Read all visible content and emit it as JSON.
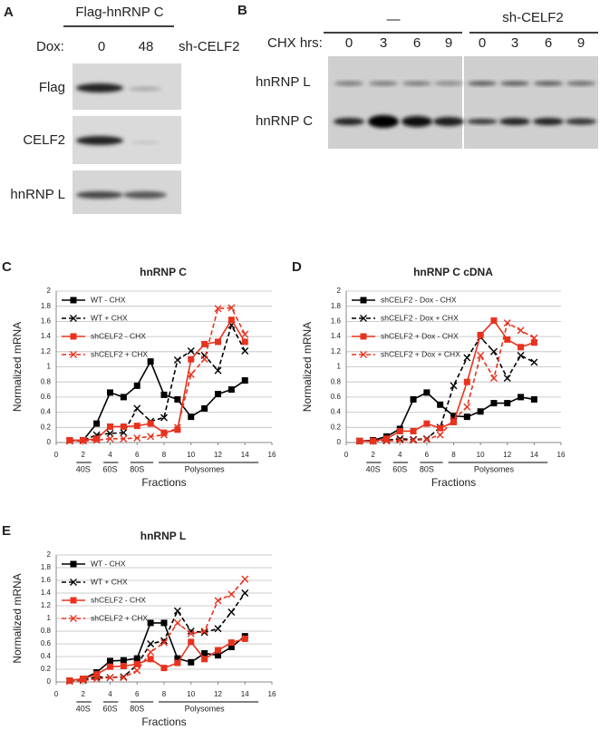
{
  "blot_a": {
    "letter": "A",
    "title": "Flag-hnRNP C",
    "dox_label": "Dox:",
    "lanes": [
      "0",
      "48"
    ],
    "sh_label": "sh-CELF2",
    "rows": [
      "Flag",
      "CELF2",
      "hnRNP L"
    ]
  },
  "blot_b": {
    "letter": "B",
    "groups": [
      "—",
      "sh-CELF2"
    ],
    "chx_label": "CHX hrs:",
    "lanes": [
      "0",
      "3",
      "6",
      "9",
      "0",
      "3",
      "6",
      "9"
    ],
    "rows": [
      "hnRNP L",
      "hnRNP C"
    ]
  },
  "chart_data": [
    {
      "type": "line",
      "panel": "C",
      "title": "hnRNP C",
      "xlabel": "Fractions",
      "ylabel": "Normalized  mRNA",
      "annotations": [
        "40S",
        "60S",
        "80S",
        "Polysomes"
      ],
      "x": [
        1,
        2,
        3,
        4,
        5,
        6,
        7,
        8,
        9,
        10,
        11,
        12,
        13,
        14
      ],
      "xlim": [
        0,
        16
      ],
      "xticks": [
        0,
        2,
        4,
        6,
        8,
        10,
        12,
        14,
        16
      ],
      "ylim": [
        0,
        2
      ],
      "yticks": [
        0,
        0.2,
        0.4,
        0.6,
        0.8,
        1,
        1.2,
        1.4,
        1.6,
        1.8,
        2
      ],
      "grid": true,
      "legend": "upper-left",
      "series": [
        {
          "name": "WT - CHX",
          "color": "#000000",
          "dash": false,
          "marker": "square",
          "values": [
            0.03,
            0.03,
            0.25,
            0.66,
            0.6,
            0.75,
            1.07,
            0.63,
            0.57,
            0.34,
            0.45,
            0.64,
            0.7,
            0.82
          ]
        },
        {
          "name": "WT + CHX",
          "color": "#000000",
          "dash": true,
          "marker": "x",
          "values": [
            0.02,
            0.03,
            0.1,
            0.12,
            0.13,
            0.45,
            0.28,
            0.33,
            1.09,
            1.21,
            1.15,
            0.95,
            1.55,
            1.21
          ]
        },
        {
          "name": "shCELF2 - CHX",
          "color": "#e8321e",
          "dash": false,
          "marker": "square",
          "values": [
            0.03,
            0.03,
            0.05,
            0.21,
            0.21,
            0.22,
            0.25,
            0.13,
            0.17,
            1.1,
            1.3,
            1.33,
            1.62,
            1.33
          ]
        },
        {
          "name": "shCELF2 + CHX",
          "color": "#e8321e",
          "dash": true,
          "marker": "x",
          "values": [
            0.02,
            0.02,
            0.03,
            0.05,
            0.05,
            0.06,
            0.08,
            0.1,
            0.2,
            0.9,
            1.1,
            1.77,
            1.78,
            1.43
          ]
        }
      ]
    },
    {
      "type": "line",
      "panel": "D",
      "title": "hnRNP C cDNA",
      "xlabel": "Fractions",
      "ylabel": "Normalized  mRNA",
      "annotations": [
        "40S",
        "60S",
        "80S",
        "Polysomes"
      ],
      "x": [
        1,
        2,
        3,
        4,
        5,
        6,
        7,
        8,
        9,
        10,
        11,
        12,
        13,
        14
      ],
      "xlim": [
        0,
        16
      ],
      "xticks": [
        0,
        2,
        4,
        6,
        8,
        10,
        12,
        14,
        16
      ],
      "ylim": [
        0,
        2
      ],
      "yticks": [
        0,
        0.2,
        0.4,
        0.6,
        0.8,
        1,
        1.2,
        1.4,
        1.6,
        1.8,
        2
      ],
      "grid": true,
      "legend": "upper-left",
      "series": [
        {
          "name": "shCELF2 - Dox - CHX",
          "color": "#000000",
          "dash": false,
          "marker": "square",
          "values": [
            0.02,
            0.03,
            0.08,
            0.18,
            0.57,
            0.66,
            0.5,
            0.35,
            0.34,
            0.41,
            0.52,
            0.52,
            0.6,
            0.57
          ]
        },
        {
          "name": "shCELF2 - Dox + CHX",
          "color": "#000000",
          "dash": true,
          "marker": "x",
          "values": [
            0.02,
            0.02,
            0.03,
            0.05,
            0.04,
            0.05,
            0.2,
            0.75,
            1.12,
            1.39,
            1.2,
            0.85,
            1.15,
            1.06
          ]
        },
        {
          "name": "shCELF2 + Dox - CHX",
          "color": "#e8321e",
          "dash": false,
          "marker": "square",
          "values": [
            0.02,
            0.02,
            0.05,
            0.15,
            0.15,
            0.25,
            0.19,
            0.27,
            0.8,
            1.42,
            1.61,
            1.36,
            1.26,
            1.32
          ]
        },
        {
          "name": "shCELF2 + Dox + CHX",
          "color": "#e8321e",
          "dash": true,
          "marker": "x",
          "values": [
            0.02,
            0.02,
            0.02,
            0.03,
            0.03,
            0.04,
            0.1,
            0.3,
            0.47,
            1.15,
            0.85,
            1.58,
            1.48,
            1.38
          ]
        }
      ]
    },
    {
      "type": "line",
      "panel": "E",
      "title": "hnRNP L",
      "xlabel": "Fractions",
      "ylabel": "Normalized  mRNA",
      "annotations": [
        "40S",
        "60S",
        "80S",
        "Polysomes"
      ],
      "x": [
        1,
        2,
        3,
        4,
        5,
        6,
        7,
        8,
        9,
        10,
        11,
        12,
        13,
        14
      ],
      "xlim": [
        0,
        16
      ],
      "xticks": [
        0,
        2,
        4,
        6,
        8,
        10,
        12,
        14,
        16
      ],
      "ylim": [
        0,
        2
      ],
      "yticks": [
        0,
        0.2,
        0.4,
        0.6,
        0.8,
        1,
        1.2,
        1.4,
        1.6,
        1.8,
        2
      ],
      "grid": true,
      "legend": "upper-left",
      "series": [
        {
          "name": "WT - CHX",
          "color": "#000000",
          "dash": false,
          "marker": "square",
          "values": [
            0.02,
            0.05,
            0.15,
            0.33,
            0.34,
            0.37,
            0.93,
            0.93,
            0.37,
            0.31,
            0.45,
            0.42,
            0.55,
            0.72
          ]
        },
        {
          "name": "WT + CHX",
          "color": "#000000",
          "dash": true,
          "marker": "x",
          "values": [
            0.01,
            0.03,
            0.08,
            0.07,
            0.08,
            0.27,
            0.6,
            0.65,
            1.12,
            0.8,
            0.78,
            0.84,
            1.1,
            1.4
          ]
        },
        {
          "name": "shCELF2 - CHX",
          "color": "#e8321e",
          "dash": false,
          "marker": "square",
          "values": [
            0.02,
            0.05,
            0.12,
            0.24,
            0.25,
            0.28,
            0.36,
            0.22,
            0.3,
            0.63,
            0.36,
            0.5,
            0.62,
            0.68
          ]
        },
        {
          "name": "shCELF2 + CHX",
          "color": "#e8321e",
          "dash": true,
          "marker": "x",
          "values": [
            0.01,
            0.02,
            0.05,
            0.07,
            0.07,
            0.18,
            0.47,
            0.62,
            0.93,
            0.76,
            0.8,
            1.28,
            1.38,
            1.62
          ]
        }
      ]
    }
  ]
}
